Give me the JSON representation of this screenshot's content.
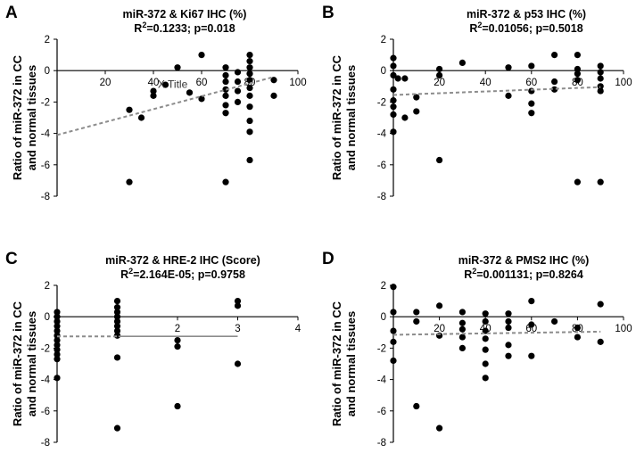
{
  "chart_data": [
    {
      "panel": "A",
      "type": "scatter",
      "title": "miR-372 & Ki67 IHC (%)",
      "stat_r2": "=0.1233; p=0.018",
      "ylabel_line1": "Ratio of miR-372 in CC",
      "ylabel_line2": "and normal tissues",
      "xlabel": "",
      "x_stray_label": "X Title",
      "xlim": [
        0,
        100
      ],
      "ylim": [
        -8,
        2
      ],
      "x_ticks": [
        20,
        40,
        60,
        80,
        100
      ],
      "y_ticks": [
        2,
        0,
        -2,
        -4,
        -6,
        -8
      ],
      "points": [
        [
          30,
          -2.5
        ],
        [
          30,
          -7.1
        ],
        [
          35,
          -3.0
        ],
        [
          40,
          -1.3
        ],
        [
          40,
          -1.6
        ],
        [
          45,
          -0.9
        ],
        [
          50,
          0.2
        ],
        [
          55,
          -1.4
        ],
        [
          60,
          1.0
        ],
        [
          60,
          -1.8
        ],
        [
          70,
          0.2
        ],
        [
          70,
          -0.3
        ],
        [
          70,
          -0.7
        ],
        [
          70,
          -1.2
        ],
        [
          70,
          -1.6
        ],
        [
          70,
          -2.2
        ],
        [
          70,
          -2.7
        ],
        [
          70,
          -7.1
        ],
        [
          75,
          -0.1
        ],
        [
          75,
          -0.7
        ],
        [
          75,
          -1.3
        ],
        [
          75,
          -2.0
        ],
        [
          80,
          1.0
        ],
        [
          80,
          0.6
        ],
        [
          80,
          0.2
        ],
        [
          80,
          -0.2
        ],
        [
          80,
          -0.6
        ],
        [
          80,
          -1.1
        ],
        [
          80,
          -1.6
        ],
        [
          80,
          -2.3
        ],
        [
          80,
          -3.2
        ],
        [
          80,
          -3.9
        ],
        [
          80,
          -5.7
        ],
        [
          90,
          -0.6
        ],
        [
          90,
          -1.6
        ]
      ],
      "trend": {
        "x": [
          0,
          90
        ],
        "y": [
          -4.1,
          -0.4
        ],
        "style": "dashed"
      }
    },
    {
      "panel": "B",
      "type": "scatter",
      "title": "miR-372 & p53 IHC (%)",
      "stat_r2": "=0.01056; p=0.5018",
      "ylabel_line1": "Ratio of miR-372 in CC",
      "ylabel_line2": "and normal tissues",
      "xlabel": "",
      "xlim": [
        0,
        100
      ],
      "ylim": [
        -8,
        2
      ],
      "x_ticks": [
        20,
        40,
        60,
        80,
        100
      ],
      "y_ticks": [
        2,
        0,
        -2,
        -4,
        -6,
        -8
      ],
      "points": [
        [
          0,
          0.8
        ],
        [
          0,
          0.3
        ],
        [
          0,
          -0.3
        ],
        [
          0,
          -1.2
        ],
        [
          0,
          -1.9
        ],
        [
          0,
          -2.3
        ],
        [
          0,
          -2.8
        ],
        [
          0,
          -3.9
        ],
        [
          2,
          -0.5
        ],
        [
          5,
          -3.0
        ],
        [
          5,
          -0.5
        ],
        [
          10,
          -1.7
        ],
        [
          10,
          -2.6
        ],
        [
          20,
          0.1
        ],
        [
          20,
          -0.3
        ],
        [
          20,
          -5.7
        ],
        [
          30,
          0.5
        ],
        [
          50,
          0.2
        ],
        [
          50,
          -1.6
        ],
        [
          60,
          0.3
        ],
        [
          60,
          -1.3
        ],
        [
          60,
          -2.1
        ],
        [
          60,
          -2.7
        ],
        [
          70,
          1.0
        ],
        [
          70,
          -0.7
        ],
        [
          70,
          -1.2
        ],
        [
          80,
          1.0
        ],
        [
          80,
          0.1
        ],
        [
          80,
          -0.2
        ],
        [
          80,
          -0.6
        ],
        [
          80,
          -7.1
        ],
        [
          90,
          0.3
        ],
        [
          90,
          -0.1
        ],
        [
          90,
          -0.5
        ],
        [
          90,
          -1.0
        ],
        [
          90,
          -1.3
        ],
        [
          90,
          -7.1
        ]
      ],
      "trend": {
        "x": [
          0,
          90
        ],
        "y": [
          -1.55,
          -1.05
        ],
        "style": "dashed"
      }
    },
    {
      "panel": "C",
      "type": "scatter",
      "title": "miR-372 & HRE-2 IHC (Score)",
      "stat_r2": "=2.164E-05; p=0.9758",
      "ylabel_line1": "Ratio of miR-372 in CC",
      "ylabel_line2": "and normal tissues",
      "xlabel": "",
      "xlim": [
        0,
        4
      ],
      "ylim": [
        -8,
        2
      ],
      "x_ticks": [
        1,
        2,
        3,
        4
      ],
      "y_ticks": [
        2,
        0,
        -2,
        -4,
        -6,
        -8
      ],
      "points": [
        [
          0,
          0.3
        ],
        [
          0,
          0.0
        ],
        [
          0,
          -0.3
        ],
        [
          0,
          -0.6
        ],
        [
          0,
          -0.9
        ],
        [
          0,
          -1.2
        ],
        [
          0,
          -1.5
        ],
        [
          0,
          -1.8
        ],
        [
          0,
          -2.1
        ],
        [
          0,
          -2.4
        ],
        [
          0,
          -2.7
        ],
        [
          0,
          -3.9
        ],
        [
          1,
          1.0
        ],
        [
          1,
          0.6
        ],
        [
          1,
          0.3
        ],
        [
          1,
          0.0
        ],
        [
          1,
          -0.3
        ],
        [
          1,
          -0.6
        ],
        [
          1,
          -0.9
        ],
        [
          1,
          -1.2
        ],
        [
          1,
          -2.6
        ],
        [
          1,
          -7.1
        ],
        [
          2,
          -1.5
        ],
        [
          2,
          -1.9
        ],
        [
          2,
          -5.7
        ],
        [
          3,
          1.0
        ],
        [
          3,
          0.7
        ],
        [
          3,
          -3.0
        ]
      ],
      "trend": {
        "x": [
          0,
          3
        ],
        "y": [
          -1.25,
          -1.25
        ],
        "style": "dashed-solid"
      }
    },
    {
      "panel": "D",
      "type": "scatter",
      "title": "miR-372 & PMS2 IHC (%)",
      "stat_r2": "=0.001131; p=0.8264",
      "ylabel_line1": "Ratio of miR-372 in CC",
      "ylabel_line2": "and normal tissues",
      "xlabel": "",
      "xlim": [
        0,
        100
      ],
      "ylim": [
        -8,
        2
      ],
      "x_ticks": [
        20,
        40,
        60,
        80,
        100
      ],
      "y_ticks": [
        2,
        0,
        -2,
        -4,
        -6,
        -8
      ],
      "points": [
        [
          0,
          1.9
        ],
        [
          0,
          0.3
        ],
        [
          0,
          -0.9
        ],
        [
          0,
          -1.6
        ],
        [
          0,
          -2.8
        ],
        [
          10,
          0.3
        ],
        [
          10,
          -0.3
        ],
        [
          10,
          -5.7
        ],
        [
          20,
          0.7
        ],
        [
          20,
          -1.2
        ],
        [
          20,
          -7.1
        ],
        [
          30,
          0.3
        ],
        [
          30,
          -0.4
        ],
        [
          30,
          -0.8
        ],
        [
          30,
          -1.3
        ],
        [
          30,
          -2.0
        ],
        [
          40,
          0.2
        ],
        [
          40,
          -0.3
        ],
        [
          40,
          -0.9
        ],
        [
          40,
          -1.4
        ],
        [
          40,
          -2.1
        ],
        [
          40,
          -3.0
        ],
        [
          40,
          -3.9
        ],
        [
          50,
          0.2
        ],
        [
          50,
          -0.3
        ],
        [
          50,
          -0.7
        ],
        [
          50,
          -1.8
        ],
        [
          50,
          -2.5
        ],
        [
          60,
          1.0
        ],
        [
          60,
          -0.5
        ],
        [
          60,
          -2.5
        ],
        [
          70,
          -0.3
        ],
        [
          80,
          -0.7
        ],
        [
          80,
          -1.3
        ],
        [
          90,
          0.8
        ],
        [
          90,
          -1.6
        ]
      ],
      "trend": {
        "x": [
          0,
          90
        ],
        "y": [
          -1.15,
          -0.95
        ],
        "style": "dashed"
      }
    }
  ]
}
